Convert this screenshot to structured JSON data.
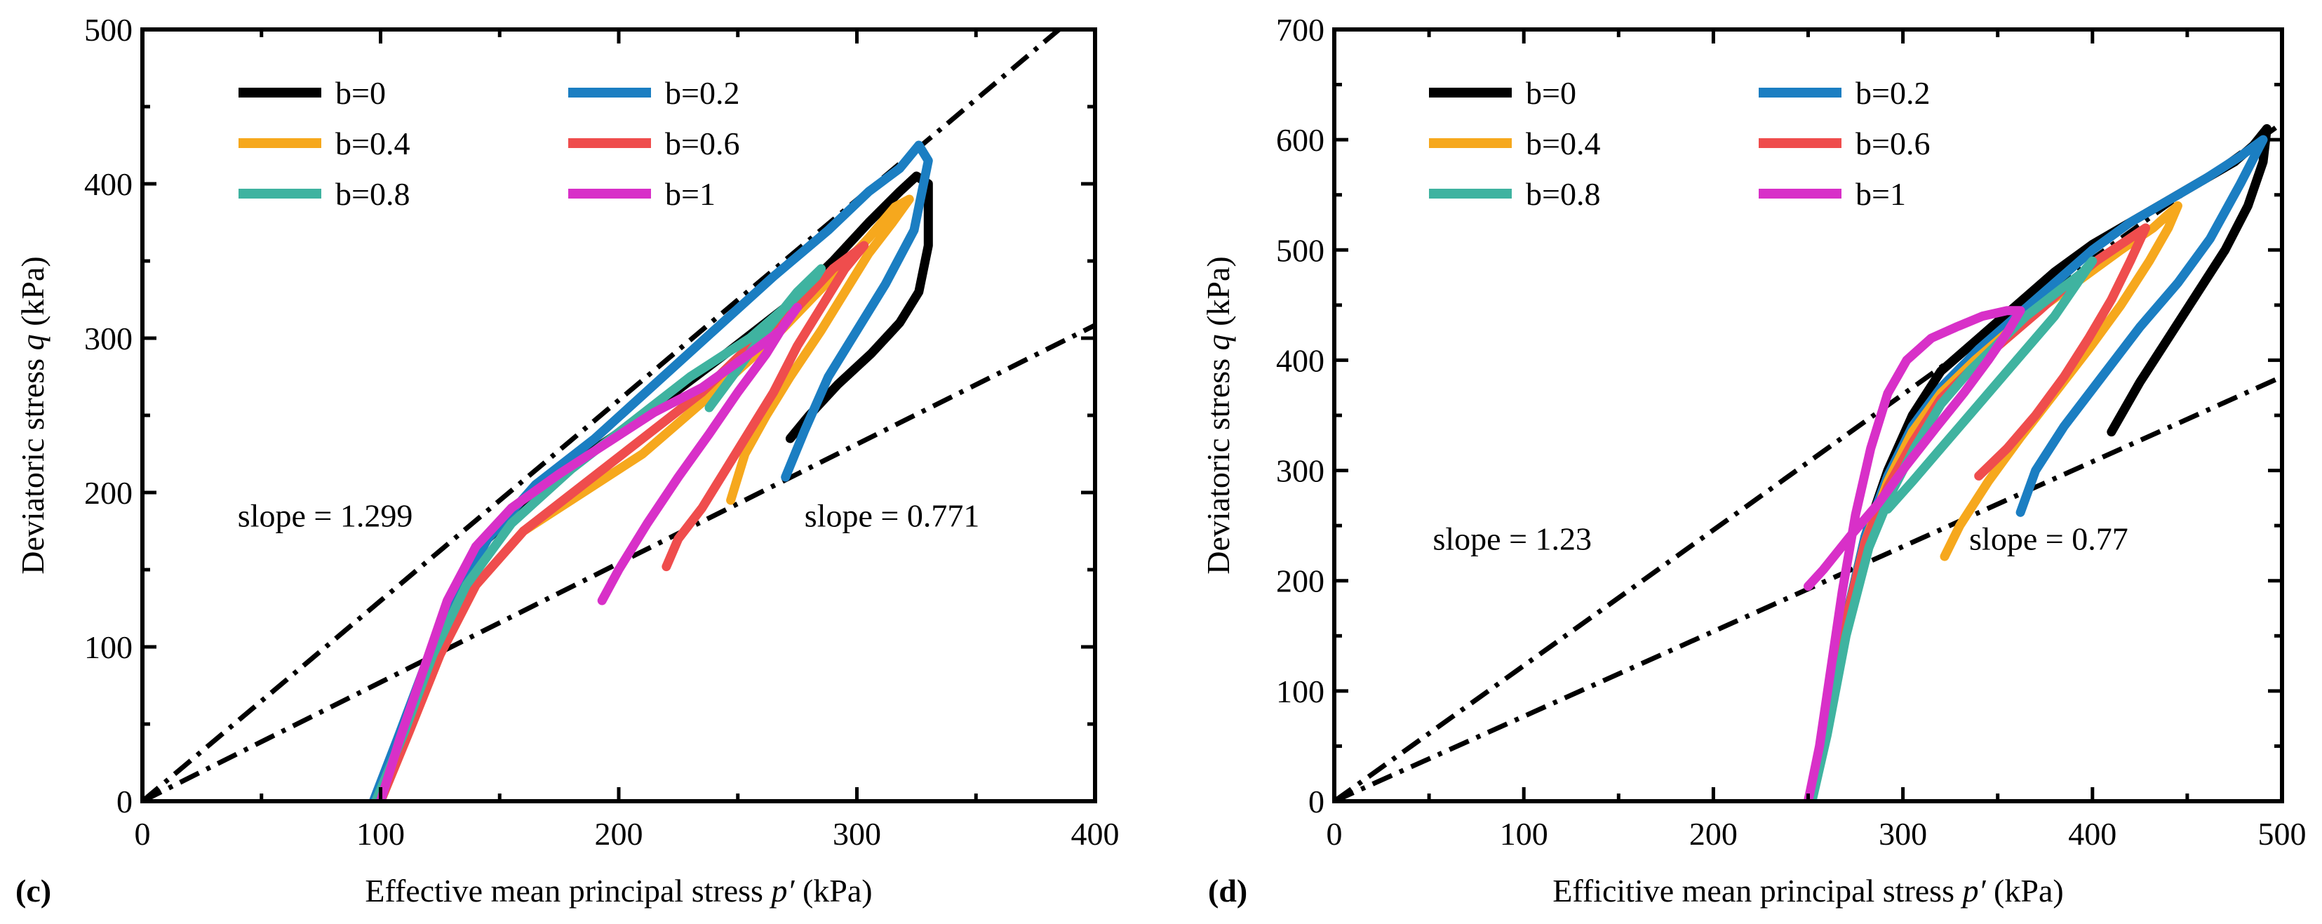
{
  "chart_data": [
    {
      "type": "line",
      "panel_label": "(c)",
      "xlabel_parts": [
        "Effective mean principal stress ",
        "p′",
        " (kPa)"
      ],
      "ylabel_parts": [
        "Deviatoric stress ",
        "q",
        " (kPa)"
      ],
      "xlim": [
        0,
        400
      ],
      "ylim": [
        0,
        500
      ],
      "xticks": [
        0,
        100,
        200,
        300,
        400
      ],
      "yticks": [
        0,
        100,
        200,
        300,
        400,
        500
      ],
      "legend_placement": "top-left",
      "ref_lines": [
        {
          "slope": 1.299,
          "label": "slope = 1.299",
          "label_at": [
            40,
            178
          ]
        },
        {
          "slope": 0.771,
          "label": "slope = 0.771",
          "label_at": [
            278,
            178
          ]
        }
      ],
      "series": [
        {
          "name": "b=0",
          "color": "#000000",
          "x": [
            100,
            110,
            120,
            130,
            145,
            165,
            190,
            215,
            245,
            270,
            290,
            305,
            318,
            325,
            330,
            330,
            326,
            318,
            306,
            292,
            280,
            272
          ],
          "y": [
            0,
            40,
            85,
            130,
            170,
            200,
            228,
            255,
            290,
            320,
            350,
            375,
            395,
            405,
            400,
            360,
            330,
            310,
            290,
            270,
            250,
            235
          ]
        },
        {
          "name": "b=0.2",
          "color": "#1b7ec2",
          "x": [
            97,
            107,
            118,
            130,
            145,
            165,
            190,
            215,
            240,
            265,
            288,
            305,
            318,
            326,
            330,
            324,
            312,
            300,
            288,
            278,
            270
          ],
          "y": [
            0,
            40,
            85,
            130,
            170,
            205,
            235,
            270,
            305,
            340,
            370,
            395,
            410,
            425,
            415,
            370,
            335,
            305,
            275,
            240,
            210
          ]
        },
        {
          "name": "b=0.4",
          "color": "#f6a81d",
          "x": [
            100,
            112,
            125,
            140,
            160,
            185,
            210,
            240,
            265,
            290,
            305,
            316,
            322,
            315,
            305,
            295,
            285,
            272,
            262,
            253,
            247
          ],
          "y": [
            0,
            45,
            95,
            140,
            175,
            200,
            225,
            265,
            300,
            340,
            365,
            385,
            390,
            375,
            355,
            330,
            305,
            275,
            250,
            225,
            195
          ]
        },
        {
          "name": "b=0.6",
          "color": "#ef4d4d",
          "x": [
            100,
            112,
            125,
            140,
            160,
            185,
            210,
            235,
            255,
            275,
            290,
            303,
            295,
            285,
            275,
            265,
            255,
            245,
            235,
            225,
            220
          ],
          "y": [
            0,
            45,
            95,
            140,
            175,
            205,
            235,
            265,
            295,
            320,
            345,
            360,
            345,
            320,
            295,
            265,
            240,
            215,
            190,
            170,
            152
          ]
        },
        {
          "name": "b=0.8",
          "color": "#3fb3a0",
          "x": [
            98,
            110,
            122,
            136,
            155,
            180,
            205,
            230,
            255,
            270,
            283,
            285,
            275,
            262,
            250,
            238
          ],
          "y": [
            0,
            45,
            95,
            140,
            180,
            215,
            245,
            275,
            300,
            320,
            340,
            345,
            330,
            305,
            280,
            255
          ]
        },
        {
          "name": "b=1",
          "color": "#d830c8",
          "x": [
            100,
            108,
            118,
            128,
            140,
            155,
            175,
            195,
            215,
            235,
            255,
            268,
            275,
            270,
            262,
            250,
            238,
            225,
            212,
            200,
            193
          ],
          "y": [
            0,
            40,
            85,
            130,
            165,
            190,
            212,
            232,
            252,
            268,
            290,
            305,
            320,
            310,
            290,
            265,
            238,
            210,
            180,
            150,
            130
          ]
        }
      ]
    },
    {
      "type": "line",
      "panel_label": "(d)",
      "xlabel_parts": [
        "Efficitive mean principal stress ",
        "p′",
        " (kPa)"
      ],
      "ylabel_parts": [
        "Deviatoric stress ",
        "q",
        " (kPa)"
      ],
      "xlim": [
        0,
        500
      ],
      "ylim": [
        0,
        700
      ],
      "xticks": [
        0,
        100,
        200,
        300,
        400,
        500
      ],
      "yticks": [
        0,
        100,
        200,
        300,
        400,
        500,
        600,
        700
      ],
      "legend_placement": "top-left",
      "ref_lines": [
        {
          "slope": 1.23,
          "label": "slope = 1.23",
          "label_at": [
            52,
            228
          ]
        },
        {
          "slope": 0.77,
          "label": "slope = 0.77",
          "label_at": [
            335,
            228
          ]
        }
      ],
      "series": [
        {
          "name": "b=0",
          "color": "#000000",
          "x": [
            250,
            258,
            268,
            280,
            292,
            305,
            320,
            340,
            360,
            380,
            400,
            420,
            440,
            460,
            475,
            485,
            492,
            490,
            482,
            470,
            455,
            440,
            425,
            410
          ],
          "y": [
            0,
            60,
            150,
            240,
            300,
            350,
            390,
            420,
            450,
            480,
            505,
            525,
            545,
            565,
            580,
            595,
            610,
            580,
            540,
            500,
            460,
            420,
            380,
            335
          ]
        },
        {
          "name": "b=0.2",
          "color": "#1b7ec2",
          "x": [
            250,
            258,
            268,
            280,
            292,
            305,
            320,
            340,
            360,
            380,
            400,
            420,
            440,
            460,
            478,
            490,
            478,
            462,
            445,
            425,
            405,
            385,
            370,
            362
          ],
          "y": [
            0,
            60,
            150,
            240,
            295,
            340,
            375,
            410,
            440,
            470,
            500,
            525,
            545,
            565,
            585,
            600,
            560,
            510,
            470,
            430,
            385,
            340,
            300,
            262
          ]
        },
        {
          "name": "b=0.4",
          "color": "#f6a81d",
          "x": [
            250,
            258,
            268,
            280,
            292,
            305,
            320,
            338,
            355,
            375,
            395,
            415,
            432,
            445,
            440,
            430,
            415,
            398,
            380,
            362,
            345,
            330,
            322
          ],
          "y": [
            0,
            60,
            150,
            235,
            290,
            335,
            370,
            400,
            425,
            450,
            475,
            500,
            520,
            540,
            520,
            490,
            450,
            410,
            370,
            330,
            290,
            250,
            222
          ]
        },
        {
          "name": "b=0.6",
          "color": "#ef4d4d",
          "x": [
            250,
            258,
            268,
            280,
            292,
            305,
            320,
            338,
            355,
            372,
            388,
            402,
            415,
            428,
            420,
            410,
            398,
            385,
            370,
            355,
            340
          ],
          "y": [
            0,
            60,
            150,
            235,
            285,
            325,
            365,
            395,
            420,
            445,
            470,
            490,
            505,
            520,
            490,
            455,
            420,
            385,
            350,
            320,
            295
          ]
        },
        {
          "name": "b=0.8",
          "color": "#3fb3a0",
          "x": [
            252,
            260,
            270,
            282,
            294,
            306,
            320,
            335,
            350,
            365,
            380,
            395,
            400,
            392,
            380,
            365,
            350,
            335,
            320,
            305,
            292
          ],
          "y": [
            0,
            60,
            150,
            230,
            280,
            320,
            360,
            390,
            415,
            440,
            460,
            480,
            490,
            470,
            440,
            410,
            380,
            350,
            320,
            290,
            265
          ]
        },
        {
          "name": "b=1",
          "color": "#d830c8",
          "x": [
            250,
            256,
            262,
            268,
            275,
            283,
            292,
            302,
            315,
            328,
            342,
            355,
            362,
            355,
            345,
            332,
            318,
            302,
            287,
            272,
            258,
            250
          ],
          "y": [
            0,
            50,
            120,
            190,
            260,
            320,
            370,
            400,
            420,
            430,
            440,
            445,
            445,
            425,
            400,
            370,
            340,
            305,
            270,
            240,
            210,
            195
          ]
        }
      ]
    }
  ]
}
